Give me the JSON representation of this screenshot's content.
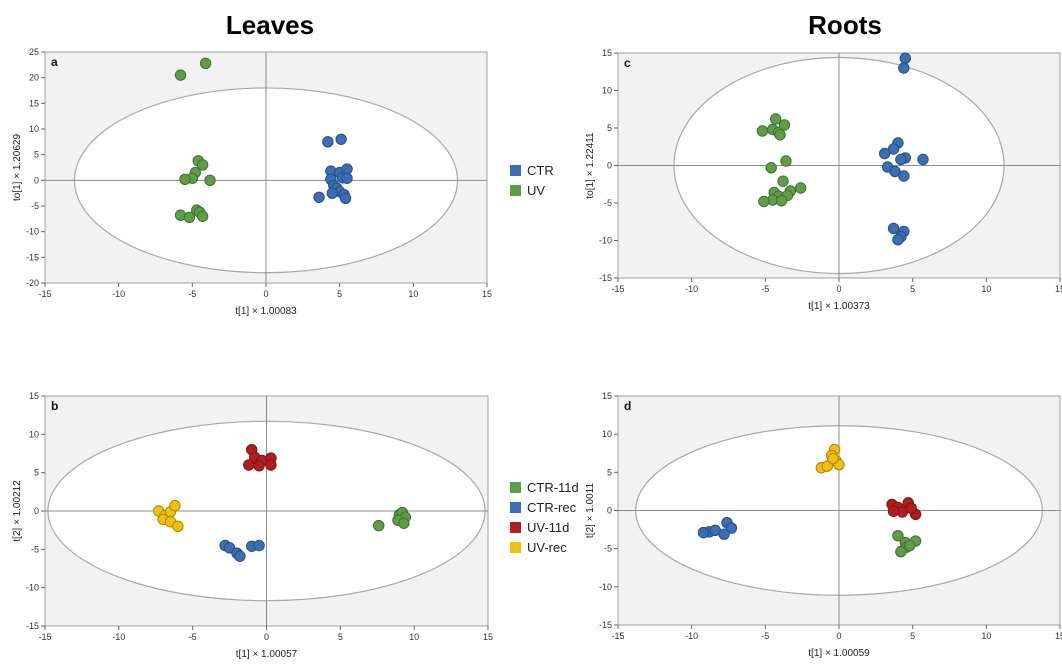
{
  "column_titles": {
    "left": "Leaves",
    "right": "Roots"
  },
  "legends": [
    {
      "items": [
        {
          "label": "CTR",
          "color": "#3a6fb5"
        },
        {
          "label": "UV",
          "color": "#5e9e47"
        }
      ]
    },
    {
      "items": [
        {
          "label": "CTR-11d",
          "color": "#5e9e47"
        },
        {
          "label": "CTR-rec",
          "color": "#3a6fb5"
        },
        {
          "label": "UV-11d",
          "color": "#b01e1e"
        },
        {
          "label": "UV-rec",
          "color": "#f2c00c"
        }
      ]
    }
  ],
  "chart_data": [
    {
      "type": "scatter",
      "panel_label": "a",
      "xlabel": "t[1] × 1.00083",
      "ylabel": "to[1] × 1.20629",
      "xlim": [
        -15,
        15
      ],
      "ylim": [
        -20,
        25
      ],
      "xticks": [
        -15,
        -10,
        -5,
        0,
        5,
        10,
        15
      ],
      "yticks": [
        -20,
        -15,
        -10,
        -5,
        0,
        5,
        10,
        15,
        20,
        25
      ],
      "ellipse": {
        "rx": 13,
        "ry": 18
      },
      "series": [
        {
          "name": "CTR",
          "color": "#3a6fb5",
          "points": [
            [
              4.2,
              7.5
            ],
            [
              5.1,
              8
            ],
            [
              4.4,
              1.8
            ],
            [
              5.0,
              1.5
            ],
            [
              5.5,
              2.2
            ],
            [
              4.4,
              0.2
            ],
            [
              5.2,
              0.5
            ],
            [
              5.5,
              0.4
            ],
            [
              4.6,
              -1.0
            ],
            [
              4.8,
              -1.5
            ],
            [
              5.0,
              -2.2
            ],
            [
              4.5,
              -2.5
            ],
            [
              5.3,
              -2.8
            ],
            [
              3.6,
              -3.3
            ],
            [
              5.4,
              -3.5
            ]
          ]
        },
        {
          "name": "UV",
          "color": "#5e9e47",
          "points": [
            [
              -5.8,
              20.5
            ],
            [
              -4.1,
              22.8
            ],
            [
              -4.6,
              3.8
            ],
            [
              -4.3,
              3.0
            ],
            [
              -4.8,
              1.5
            ],
            [
              -5.0,
              0.4
            ],
            [
              -5.5,
              0.2
            ],
            [
              -3.8,
              0.0
            ],
            [
              -4.7,
              -5.8
            ],
            [
              -4.5,
              -6.2
            ],
            [
              -5.8,
              -6.8
            ],
            [
              -5.2,
              -7.2
            ],
            [
              -4.3,
              -7.0
            ]
          ]
        }
      ]
    },
    {
      "type": "scatter",
      "panel_label": "b",
      "xlabel": "t[1] × 1.00057",
      "ylabel": "t[2] × 1.00212",
      "xlim": [
        -15,
        15
      ],
      "ylim": [
        -15,
        15
      ],
      "xticks": [
        -15,
        -10,
        -5,
        0,
        5,
        10,
        15
      ],
      "yticks": [
        -15,
        -10,
        -5,
        0,
        5,
        10,
        15
      ],
      "ellipse": {
        "rx": 14.8,
        "ry": 11.7
      },
      "series": [
        {
          "name": "CTR-11d",
          "color": "#5e9e47",
          "points": [
            [
              9.0,
              -0.5
            ],
            [
              9.2,
              -0.2
            ],
            [
              9.4,
              -0.8
            ],
            [
              8.9,
              -1.2
            ],
            [
              9.3,
              -1.6
            ],
            [
              7.6,
              -1.9
            ]
          ]
        },
        {
          "name": "CTR-rec",
          "color": "#3a6fb5",
          "points": [
            [
              -2.8,
              -4.5
            ],
            [
              -2.5,
              -4.8
            ],
            [
              -1.0,
              -4.6
            ],
            [
              -0.5,
              -4.5
            ],
            [
              -2.0,
              -5.5
            ],
            [
              -1.8,
              -5.9
            ]
          ]
        },
        {
          "name": "UV-11d",
          "color": "#b01e1e",
          "points": [
            [
              -1.0,
              8.0
            ],
            [
              -0.8,
              7.0
            ],
            [
              -0.3,
              6.6
            ],
            [
              0.3,
              6.9
            ],
            [
              -1.2,
              6.0
            ],
            [
              -0.5,
              5.9
            ],
            [
              0.3,
              6.0
            ]
          ]
        },
        {
          "name": "UV-rec",
          "color": "#f2c00c",
          "points": [
            [
              -7.3,
              0.0
            ],
            [
              -6.9,
              -0.6
            ],
            [
              -6.5,
              -0.1
            ],
            [
              -6.2,
              0.7
            ],
            [
              -7.0,
              -1.1
            ],
            [
              -6.5,
              -1.4
            ],
            [
              -6.0,
              -2.0
            ]
          ]
        }
      ]
    },
    {
      "type": "scatter",
      "panel_label": "c",
      "xlabel": "t[1] × 1.00373",
      "ylabel": "to[1] × 1.22411",
      "xlim": [
        -15,
        15
      ],
      "ylim": [
        -15,
        15
      ],
      "xticks": [
        -15,
        -10,
        -5,
        0,
        5,
        10,
        15
      ],
      "yticks": [
        -15,
        -10,
        -5,
        0,
        5,
        10,
        15
      ],
      "ellipse": {
        "rx": 11.2,
        "ry": 14.4
      },
      "series": [
        {
          "name": "CTR",
          "color": "#3a6fb5",
          "points": [
            [
              4.5,
              14.3
            ],
            [
              4.4,
              13.0
            ],
            [
              4.0,
              3.0
            ],
            [
              3.7,
              2.2
            ],
            [
              3.1,
              1.6
            ],
            [
              4.5,
              1.0
            ],
            [
              4.2,
              0.8
            ],
            [
              5.7,
              0.8
            ],
            [
              3.3,
              -0.2
            ],
            [
              3.8,
              -0.8
            ],
            [
              4.4,
              -1.4
            ],
            [
              3.7,
              -8.4
            ],
            [
              4.4,
              -8.8
            ],
            [
              4.2,
              -9.5
            ],
            [
              4.0,
              -9.9
            ]
          ]
        },
        {
          "name": "UV",
          "color": "#5e9e47",
          "points": [
            [
              -4.3,
              6.2
            ],
            [
              -4.5,
              4.8
            ],
            [
              -4.1,
              4.4
            ],
            [
              -3.7,
              5.4
            ],
            [
              -5.2,
              4.6
            ],
            [
              -4.0,
              4.1
            ],
            [
              -3.8,
              -2.1
            ],
            [
              -3.6,
              0.6
            ],
            [
              -4.6,
              -0.3
            ],
            [
              -3.3,
              -3.4
            ],
            [
              -4.4,
              -3.6
            ],
            [
              -4.1,
              -4.1
            ],
            [
              -3.5,
              -4.0
            ],
            [
              -4.5,
              -4.6
            ],
            [
              -5.1,
              -4.8
            ],
            [
              -3.9,
              -4.7
            ],
            [
              -2.6,
              -3.0
            ]
          ]
        }
      ]
    },
    {
      "type": "scatter",
      "panel_label": "d",
      "xlabel": "t[1] × 1.00059",
      "ylabel": "t[2] × 1.0011",
      "xlim": [
        -15,
        15
      ],
      "ylim": [
        -15,
        15
      ],
      "xticks": [
        -15,
        -10,
        -5,
        0,
        5,
        10,
        15
      ],
      "yticks": [
        -15,
        -10,
        -5,
        0,
        5,
        10,
        15
      ],
      "ellipse": {
        "rx": 13.8,
        "ry": 11.1
      },
      "series": [
        {
          "name": "CTR-11d",
          "color": "#5e9e47",
          "points": [
            [
              4.0,
              -3.3
            ],
            [
              4.5,
              -4.2
            ],
            [
              5.2,
              -4.0
            ],
            [
              4.6,
              -4.8
            ],
            [
              4.2,
              -5.4
            ],
            [
              4.8,
              -4.6
            ]
          ]
        },
        {
          "name": "CTR-rec",
          "color": "#3a6fb5",
          "points": [
            [
              -8.8,
              -2.8
            ],
            [
              -8.4,
              -2.6
            ],
            [
              -7.6,
              -1.6
            ],
            [
              -7.3,
              -2.3
            ],
            [
              -7.8,
              -3.1
            ],
            [
              -9.2,
              -2.9
            ]
          ]
        },
        {
          "name": "UV-11d",
          "color": "#b01e1e",
          "points": [
            [
              3.6,
              0.8
            ],
            [
              4.0,
              0.4
            ],
            [
              4.3,
              -0.2
            ],
            [
              4.7,
              1.0
            ],
            [
              5.2,
              -0.5
            ],
            [
              3.7,
              -0.1
            ],
            [
              4.9,
              0.3
            ]
          ]
        },
        {
          "name": "UV-rec",
          "color": "#f2c00c",
          "points": [
            [
              -0.3,
              8.0
            ],
            [
              -0.5,
              7.2
            ],
            [
              -0.2,
              6.5
            ],
            [
              -1.2,
              5.6
            ],
            [
              -0.8,
              5.8
            ],
            [
              0.0,
              6.0
            ],
            [
              -0.4,
              6.8
            ]
          ]
        }
      ]
    }
  ]
}
